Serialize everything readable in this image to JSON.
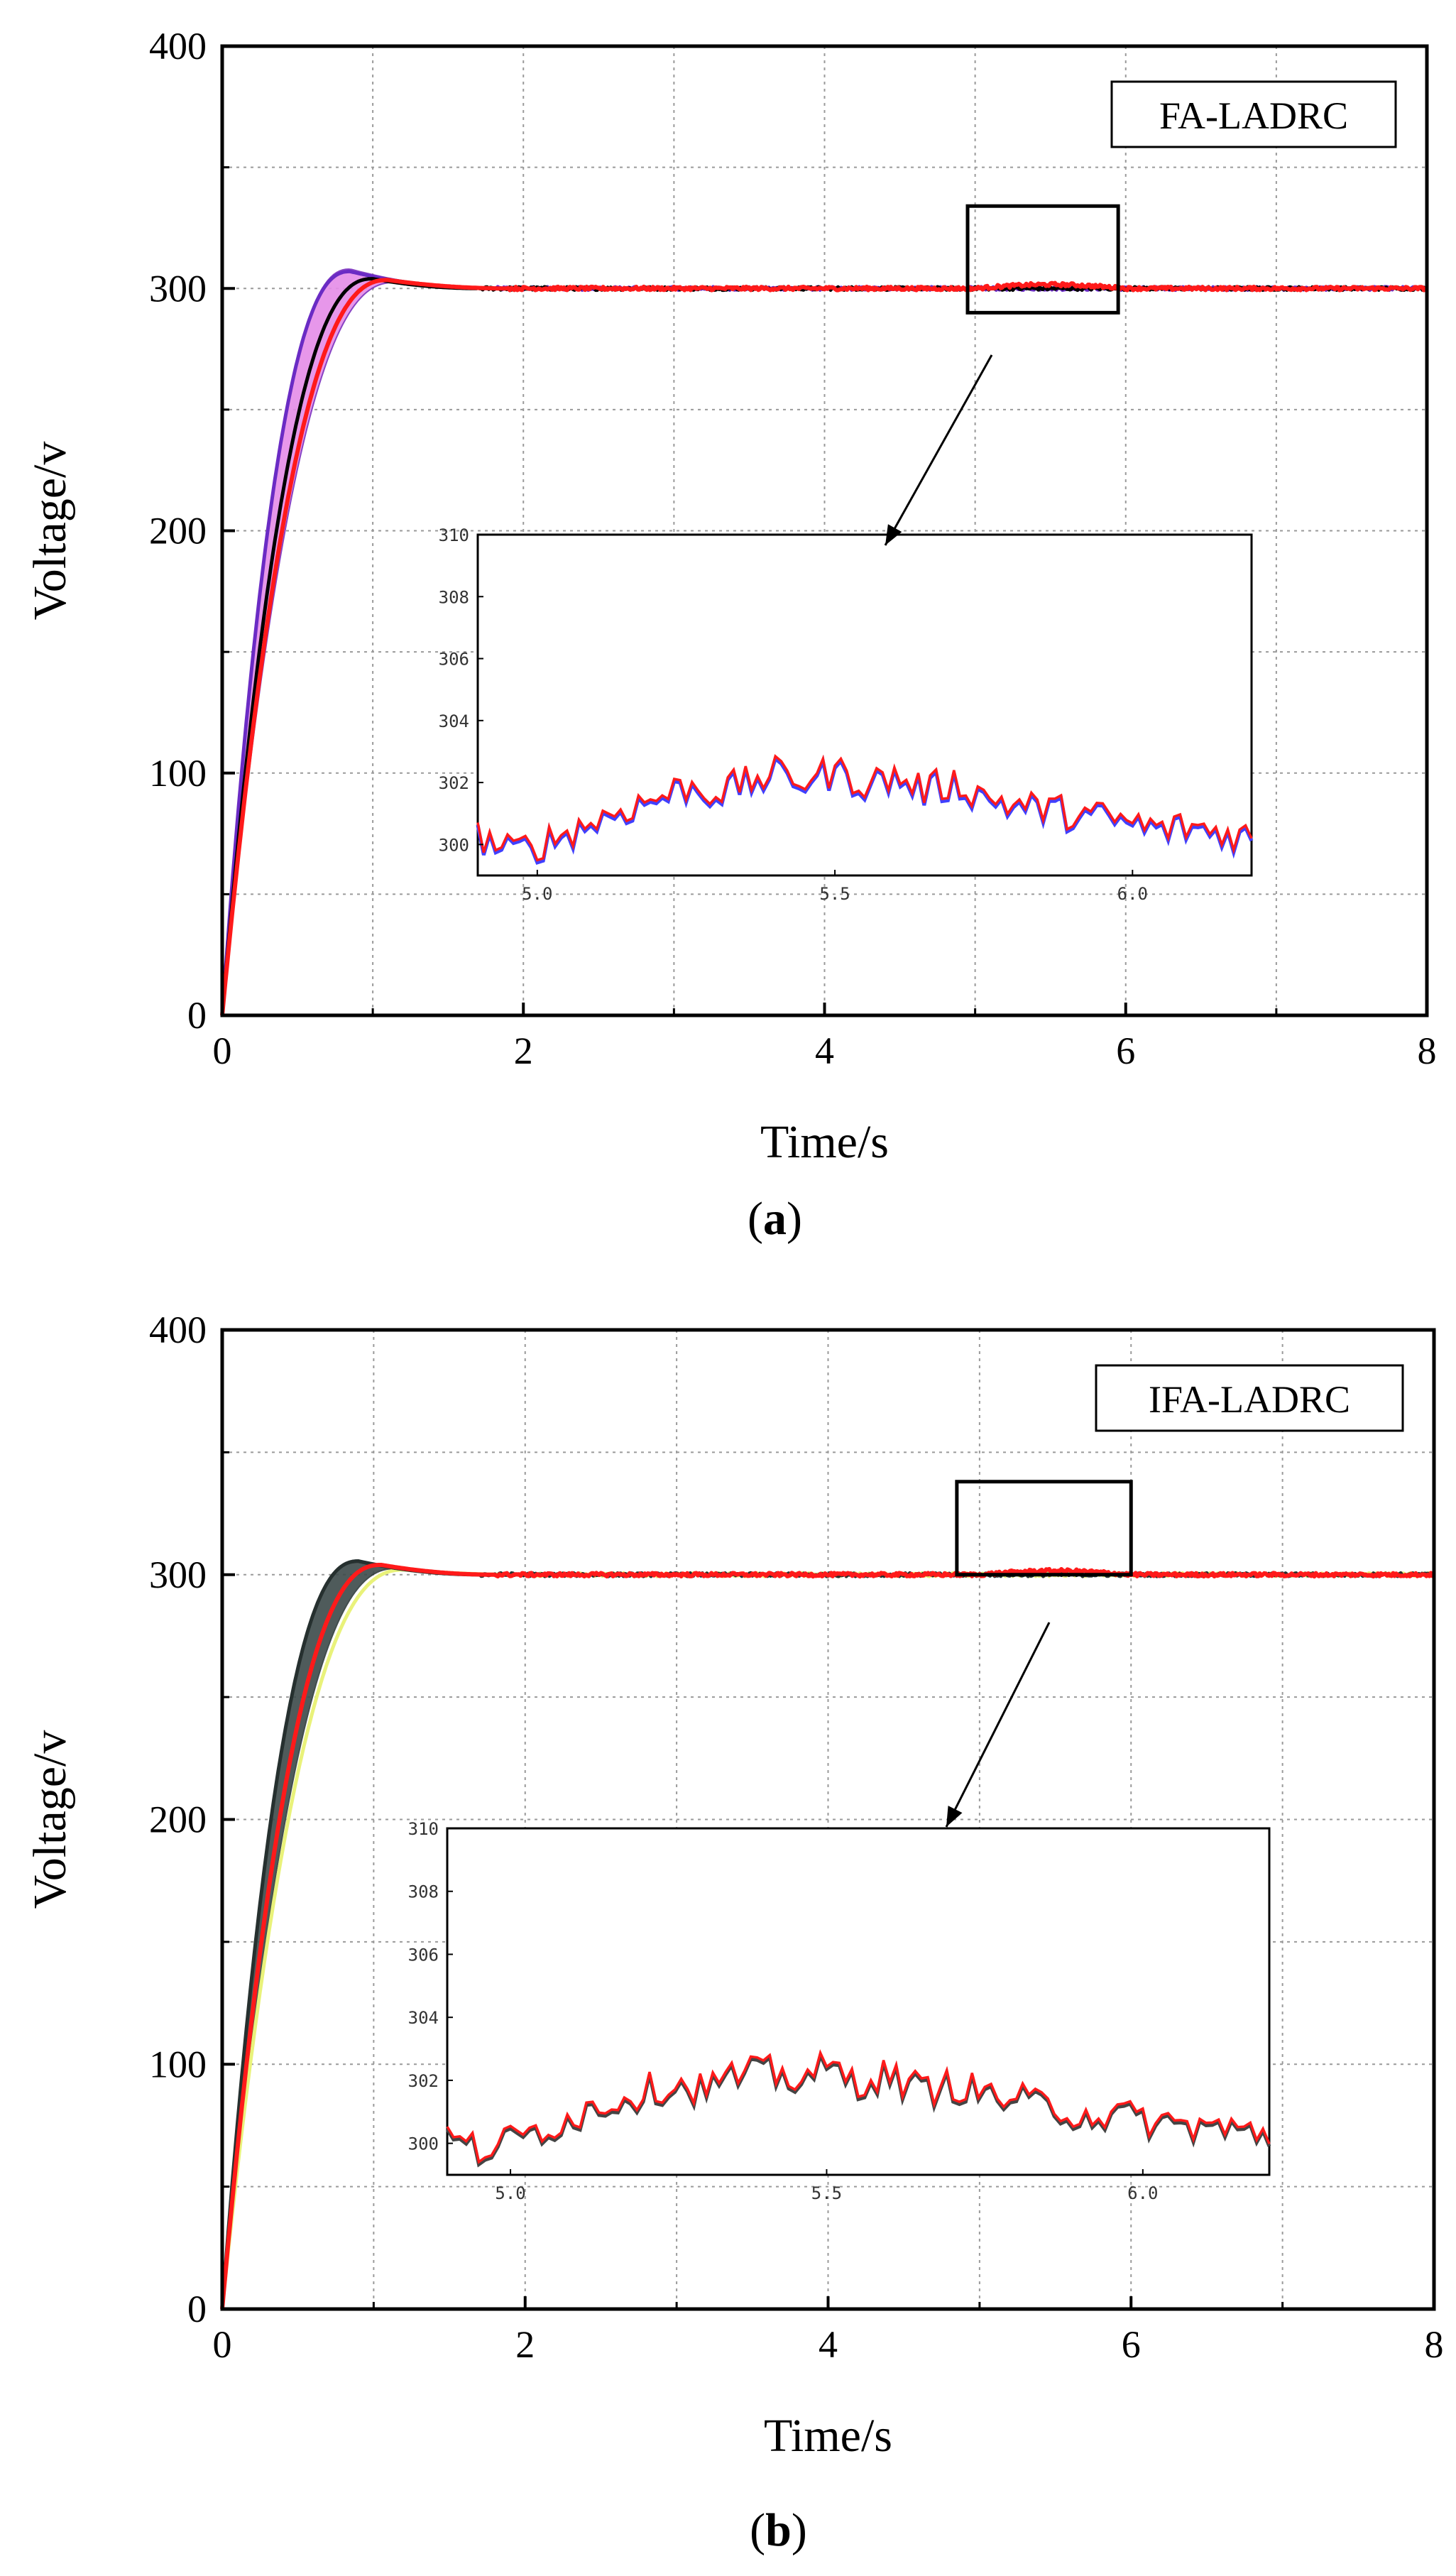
{
  "chart_data": [
    {
      "id": "a",
      "type": "line",
      "caption": "a",
      "label_box": "FA-LADRC",
      "xlabel": "Time/s",
      "ylabel": "Voltage/v",
      "xlim": [
        0,
        8
      ],
      "ylim": [
        0,
        400
      ],
      "x_ticks": [
        0,
        2,
        4,
        6,
        8
      ],
      "y_ticks": [
        0,
        100,
        200,
        300,
        400
      ],
      "grid": true,
      "steady_value": 300,
      "zoom_window": {
        "x": [
          4.95,
          5.95
        ],
        "y": [
          290,
          334
        ]
      },
      "envelope": {
        "color": "#7b2fbe",
        "fill": "#e58ce8",
        "peak_time": 0.85,
        "peak_value": 308
      },
      "series": [
        {
          "name": "purple",
          "color": "#6a2bc4",
          "peak_time": 0.85,
          "peak_value": 307,
          "settle_time": 1.8
        },
        {
          "name": "black",
          "color": "#000000",
          "peak_time": 1.0,
          "peak_value": 304,
          "settle_time": 1.7
        },
        {
          "name": "red",
          "color": "#ff1a1a",
          "peak_time": 1.1,
          "peak_value": 303.5,
          "settle_time": 1.9
        }
      ],
      "inset": {
        "xlim": [
          4.9,
          6.2
        ],
        "ylim": [
          299,
          310
        ],
        "x_ticks": [
          "5.0",
          "5.5",
          "6.0"
        ],
        "x_tick_values": [
          5.0,
          5.5,
          6.0
        ],
        "y_ticks": [
          "300",
          "302",
          "304",
          "306",
          "308",
          "310"
        ],
        "y_tick_values": [
          300,
          302,
          304,
          306,
          308,
          310
        ],
        "under_color": "#4040ff",
        "line_color": "#ff1a1a",
        "x": [
          4.9,
          4.95,
          5.0,
          5.05,
          5.1,
          5.15,
          5.2,
          5.25,
          5.3,
          5.35,
          5.4,
          5.45,
          5.5,
          5.55,
          5.6,
          5.65,
          5.7,
          5.75,
          5.8,
          5.85,
          5.9,
          5.95,
          6.0,
          6.05,
          6.1,
          6.15,
          6.2
        ],
        "values": [
          300.3,
          299.8,
          300.0,
          300.4,
          300.8,
          301.2,
          301.5,
          301.9,
          301.7,
          302.0,
          302.3,
          302.1,
          302.4,
          302.0,
          302.2,
          301.8,
          302.0,
          301.6,
          301.3,
          301.2,
          301.0,
          300.9,
          300.7,
          300.5,
          300.6,
          300.4,
          300.3
        ]
      }
    },
    {
      "id": "b",
      "type": "line",
      "caption": "b",
      "label_box": "IFA-LADRC",
      "xlabel": "Time/s",
      "ylabel": "Voltage/v",
      "xlim": [
        0,
        8
      ],
      "ylim": [
        0,
        400
      ],
      "x_ticks": [
        0,
        2,
        4,
        6,
        8
      ],
      "y_ticks": [
        0,
        100,
        200,
        300,
        400
      ],
      "grid": true,
      "steady_value": 300,
      "zoom_window": {
        "x": [
          4.85,
          6.0
        ],
        "y": [
          300,
          338
        ]
      },
      "envelope": {
        "color": "#2e3a3a",
        "fill": "#3c4a4a",
        "peak_time": 0.9,
        "peak_value": 306
      },
      "series": [
        {
          "name": "yellow",
          "color": "#e9f27a",
          "peak_time": 1.2,
          "peak_value": 302,
          "settle_time": 2.0
        },
        {
          "name": "dark",
          "color": "#26302f",
          "peak_time": 0.9,
          "peak_value": 305.5,
          "settle_time": 1.7
        },
        {
          "name": "red",
          "color": "#ff1a1a",
          "peak_time": 1.05,
          "peak_value": 304,
          "settle_time": 1.8
        }
      ],
      "inset": {
        "xlim": [
          4.9,
          6.2
        ],
        "ylim": [
          299,
          310
        ],
        "x_ticks": [
          "5.0",
          "5.5",
          "6.0"
        ],
        "x_tick_values": [
          5.0,
          5.5,
          6.0
        ],
        "y_ticks": [
          "300",
          "302",
          "304",
          "306",
          "308",
          "310"
        ],
        "y_tick_values": [
          300,
          302,
          304,
          306,
          308,
          310
        ],
        "under_color": "#444444",
        "line_color": "#ff1a1a",
        "x": [
          4.9,
          4.95,
          5.0,
          5.05,
          5.1,
          5.15,
          5.2,
          5.25,
          5.3,
          5.35,
          5.4,
          5.45,
          5.5,
          5.55,
          5.6,
          5.65,
          5.7,
          5.75,
          5.8,
          5.85,
          5.9,
          5.95,
          6.0,
          6.05,
          6.1,
          6.15,
          6.2
        ],
        "values": [
          300.2,
          299.8,
          300.1,
          300.5,
          300.9,
          301.3,
          301.6,
          301.9,
          301.8,
          302.1,
          302.3,
          302.1,
          302.4,
          302.0,
          302.2,
          301.7,
          301.9,
          301.6,
          301.4,
          301.2,
          301.0,
          300.9,
          300.8,
          300.6,
          300.6,
          300.4,
          300.3
        ]
      }
    }
  ]
}
